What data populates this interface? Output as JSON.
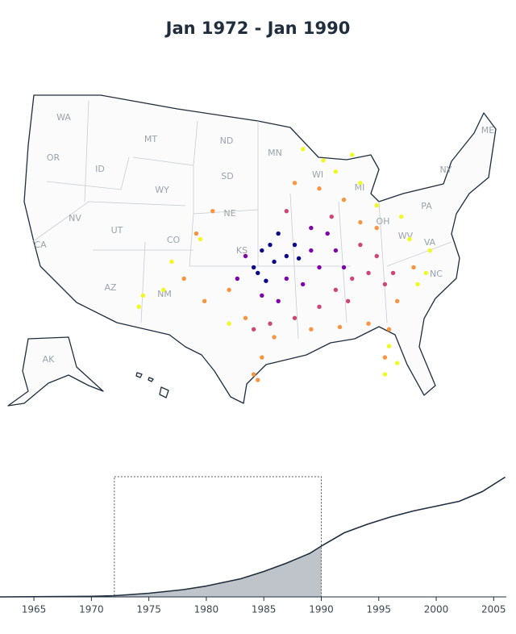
{
  "title": "Jan 1972 - Jan 1990",
  "map": {
    "state_labels": [
      "WA",
      "MT",
      "ND",
      "MN",
      "ME",
      "OR",
      "ID",
      "SD",
      "WI",
      "NY",
      "MI",
      "WY",
      "PA",
      "NV",
      "NE",
      "OH",
      "UT",
      "CO",
      "WV",
      "VA",
      "KS",
      "CA",
      "AZ",
      "NM",
      "NC",
      "AK"
    ],
    "points": [
      {
        "lon": -97,
        "lat": 37.5,
        "color": "#0d0887"
      },
      {
        "lon": -96,
        "lat": 38,
        "color": "#0d0887"
      },
      {
        "lon": -95.5,
        "lat": 36.5,
        "color": "#0d0887"
      },
      {
        "lon": -97.5,
        "lat": 35.5,
        "color": "#0d0887"
      },
      {
        "lon": -94,
        "lat": 37,
        "color": "#0d0887"
      },
      {
        "lon": -92.5,
        "lat": 36.8,
        "color": "#0d0887"
      },
      {
        "lon": -98,
        "lat": 36,
        "color": "#0d0887"
      },
      {
        "lon": -96.5,
        "lat": 34.8,
        "color": "#0d0887"
      },
      {
        "lon": -93,
        "lat": 38,
        "color": "#0d0887"
      },
      {
        "lon": -95,
        "lat": 39,
        "color": "#0d0887"
      },
      {
        "lon": -99,
        "lat": 37,
        "color": "#7e03a8"
      },
      {
        "lon": -91,
        "lat": 37.5,
        "color": "#7e03a8"
      },
      {
        "lon": -90,
        "lat": 36,
        "color": "#7e03a8"
      },
      {
        "lon": -94,
        "lat": 35,
        "color": "#7e03a8"
      },
      {
        "lon": -92,
        "lat": 34.5,
        "color": "#7e03a8"
      },
      {
        "lon": -97,
        "lat": 33.5,
        "color": "#7e03a8"
      },
      {
        "lon": -88,
        "lat": 37.5,
        "color": "#7e03a8"
      },
      {
        "lon": -89,
        "lat": 39,
        "color": "#7e03a8"
      },
      {
        "lon": -100,
        "lat": 35,
        "color": "#7e03a8"
      },
      {
        "lon": -95,
        "lat": 33,
        "color": "#7e03a8"
      },
      {
        "lon": -87,
        "lat": 36,
        "color": "#7e03a8"
      },
      {
        "lon": -91,
        "lat": 39.5,
        "color": "#7e03a8"
      },
      {
        "lon": -86,
        "lat": 35,
        "color": "#cc4778"
      },
      {
        "lon": -88,
        "lat": 34,
        "color": "#cc4778"
      },
      {
        "lon": -90,
        "lat": 32.5,
        "color": "#cc4778"
      },
      {
        "lon": -84,
        "lat": 35.5,
        "color": "#cc4778"
      },
      {
        "lon": -85,
        "lat": 38,
        "color": "#cc4778"
      },
      {
        "lon": -82,
        "lat": 34.5,
        "color": "#cc4778"
      },
      {
        "lon": -86.5,
        "lat": 33,
        "color": "#cc4778"
      },
      {
        "lon": -93,
        "lat": 31.5,
        "color": "#cc4778"
      },
      {
        "lon": -96,
        "lat": 31,
        "color": "#cc4778"
      },
      {
        "lon": -83,
        "lat": 37,
        "color": "#cc4778"
      },
      {
        "lon": -98,
        "lat": 30.5,
        "color": "#cc4778"
      },
      {
        "lon": -94,
        "lat": 41,
        "color": "#cc4778"
      },
      {
        "lon": -88.5,
        "lat": 40.5,
        "color": "#cc4778"
      },
      {
        "lon": -81,
        "lat": 35.5,
        "color": "#cc4778"
      },
      {
        "lon": -97,
        "lat": 28,
        "color": "#f89540"
      },
      {
        "lon": -95.5,
        "lat": 29.8,
        "color": "#f89540"
      },
      {
        "lon": -99,
        "lat": 31.5,
        "color": "#f89540"
      },
      {
        "lon": -101,
        "lat": 34,
        "color": "#f89540"
      },
      {
        "lon": -104,
        "lat": 33,
        "color": "#f89540"
      },
      {
        "lon": -105,
        "lat": 39,
        "color": "#f89540"
      },
      {
        "lon": -103,
        "lat": 41,
        "color": "#f89540"
      },
      {
        "lon": -91,
        "lat": 30.5,
        "color": "#f89540"
      },
      {
        "lon": -87.5,
        "lat": 30.7,
        "color": "#f89540"
      },
      {
        "lon": -84,
        "lat": 31,
        "color": "#f89540"
      },
      {
        "lon": -82,
        "lat": 28,
        "color": "#f89540"
      },
      {
        "lon": -81.5,
        "lat": 30.5,
        "color": "#f89540"
      },
      {
        "lon": -80.5,
        "lat": 33,
        "color": "#f89540"
      },
      {
        "lon": -85,
        "lat": 40,
        "color": "#f89540"
      },
      {
        "lon": -83,
        "lat": 39.5,
        "color": "#f89540"
      },
      {
        "lon": -87,
        "lat": 42,
        "color": "#f89540"
      },
      {
        "lon": -90,
        "lat": 43,
        "color": "#f89540"
      },
      {
        "lon": -93,
        "lat": 43.5,
        "color": "#f89540"
      },
      {
        "lon": -106.5,
        "lat": 35,
        "color": "#f89540"
      },
      {
        "lon": -78.5,
        "lat": 36,
        "color": "#f89540"
      },
      {
        "lon": -98,
        "lat": 26.5,
        "color": "#f89540"
      },
      {
        "lon": -97.5,
        "lat": 26,
        "color": "#f89540"
      },
      {
        "lon": -111.5,
        "lat": 33.5,
        "color": "#f0f921"
      },
      {
        "lon": -112,
        "lat": 32.5,
        "color": "#f0f921"
      },
      {
        "lon": -109,
        "lat": 34,
        "color": "#f0f921"
      },
      {
        "lon": -104.5,
        "lat": 38.5,
        "color": "#f0f921"
      },
      {
        "lon": -82,
        "lat": 26.5,
        "color": "#f0f921"
      },
      {
        "lon": -80.5,
        "lat": 27.5,
        "color": "#f0f921"
      },
      {
        "lon": -81.5,
        "lat": 29,
        "color": "#f0f921"
      },
      {
        "lon": -77,
        "lat": 35.5,
        "color": "#f0f921"
      },
      {
        "lon": -76.5,
        "lat": 37.5,
        "color": "#f0f921"
      },
      {
        "lon": -79,
        "lat": 38.5,
        "color": "#f0f921"
      },
      {
        "lon": -80,
        "lat": 40.5,
        "color": "#f0f921"
      },
      {
        "lon": -83,
        "lat": 41.5,
        "color": "#f0f921"
      },
      {
        "lon": -88,
        "lat": 44.5,
        "color": "#f0f921"
      },
      {
        "lon": -89.5,
        "lat": 45.5,
        "color": "#f0f921"
      },
      {
        "lon": -86,
        "lat": 46,
        "color": "#f0f921"
      },
      {
        "lon": -85,
        "lat": 43.5,
        "color": "#f0f921"
      },
      {
        "lon": -101,
        "lat": 31,
        "color": "#f0f921"
      },
      {
        "lon": -108,
        "lat": 36.5,
        "color": "#f0f921"
      },
      {
        "lon": -92,
        "lat": 46.5,
        "color": "#f0f921"
      },
      {
        "lon": -78,
        "lat": 34.5,
        "color": "#f0f921"
      }
    ]
  },
  "chart_data": {
    "type": "area",
    "x": [
      1962,
      1966,
      1970,
      1972,
      1975,
      1978,
      1980,
      1983,
      1985,
      1987,
      1989,
      1990,
      1992,
      1994,
      1996,
      1998,
      2000,
      2002,
      2004,
      2006
    ],
    "values": [
      0,
      0.2,
      0.5,
      1,
      3,
      6,
      9,
      15,
      21,
      28,
      36,
      42,
      53,
      60,
      66,
      71,
      75,
      79,
      87,
      99
    ],
    "xlim": [
      1962.4,
      2006.1
    ],
    "ylim": [
      0,
      100
    ],
    "xticks": [
      1965,
      1970,
      1975,
      1980,
      1985,
      1990,
      1995,
      2000,
      2005
    ],
    "selection": [
      1972,
      1990
    ],
    "color": "#1f2d3d",
    "fill": "#bfc4ca"
  }
}
